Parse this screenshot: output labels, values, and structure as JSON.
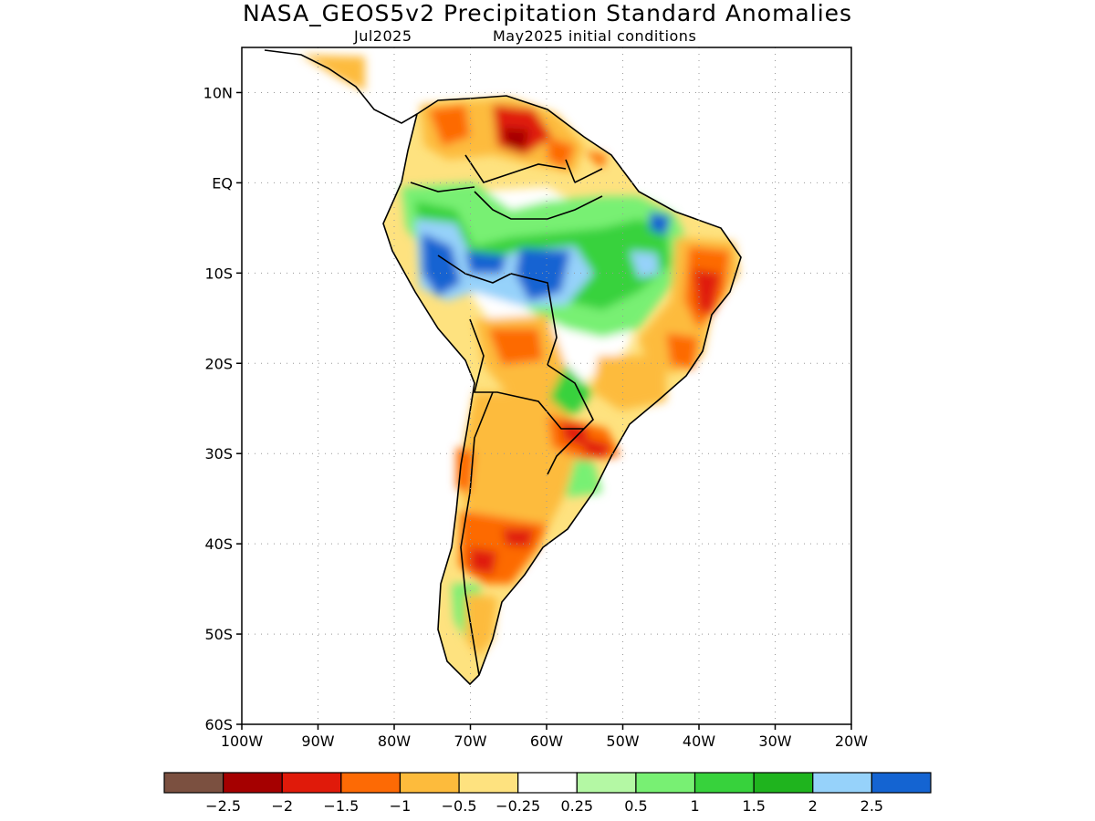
{
  "title": "NASA_GEOS5v2 Precipitation Standard Anomalies",
  "subtitle_left": "Jul2025",
  "subtitle_right": "May2025 initial conditions",
  "map": {
    "lon_range": [
      -100,
      -20
    ],
    "lat_range": [
      -60,
      15
    ],
    "lat_labels": [
      "10N",
      "EQ",
      "10S",
      "20S",
      "30S",
      "40S",
      "50S",
      "60S"
    ],
    "lat_values": [
      10,
      0,
      -10,
      -20,
      -30,
      -40,
      -50,
      -60
    ],
    "lon_labels": [
      "100W",
      "90W",
      "80W",
      "70W",
      "60W",
      "50W",
      "40W",
      "30W",
      "20W"
    ],
    "lon_values": [
      -100,
      -90,
      -80,
      -70,
      -60,
      -50,
      -40,
      -30,
      -20
    ],
    "grid": "dotted"
  },
  "colorbar": {
    "colors": [
      "#7b5040",
      "#a50000",
      "#e01a0a",
      "#fd6a05",
      "#fdbb3c",
      "#fee27f",
      "#ffffff",
      "#b4f8a4",
      "#78f073",
      "#37d23c",
      "#1fb41e",
      "#96d2fa",
      "#1464d2"
    ],
    "labels": [
      "−2.5",
      "−2",
      "−1.5",
      "−1",
      "−0.5",
      "−0.25",
      "0.25",
      "0.5",
      "1",
      "1.5",
      "2",
      "2.5"
    ]
  }
}
